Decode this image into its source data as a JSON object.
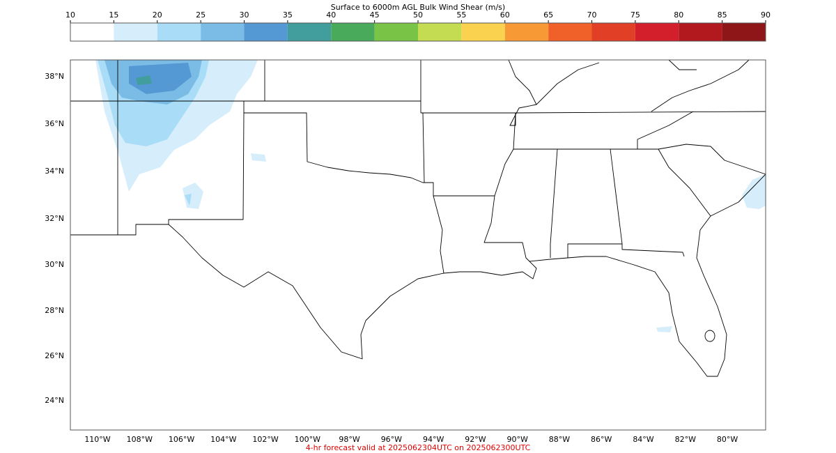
{
  "colorbar": {
    "title": "Surface to 6000m AGL Bulk Wind Shear (m/s)",
    "ticks": [
      10,
      15,
      20,
      25,
      30,
      35,
      40,
      45,
      50,
      55,
      60,
      65,
      70,
      75,
      80,
      85,
      90
    ],
    "colors": [
      "#ffffff",
      "#d6eefb",
      "#a9dcf6",
      "#7bbce6",
      "#5499d3",
      "#429e9c",
      "#4aaa5b",
      "#79c346",
      "#c4dc52",
      "#fad24f",
      "#f79a36",
      "#f0612a",
      "#e23f27",
      "#d21f2b",
      "#b2191f",
      "#8f1618"
    ]
  },
  "map": {
    "lat_labels": [
      "38°N",
      "36°N",
      "34°N",
      "32°N",
      "30°N",
      "28°N",
      "26°N",
      "24°N"
    ],
    "lon_labels": [
      "110°W",
      "108°W",
      "106°W",
      "104°W",
      "102°W",
      "100°W",
      "98°W",
      "96°W",
      "94°W",
      "92°W",
      "90°W",
      "88°W",
      "86°W",
      "84°W",
      "82°W",
      "80°W"
    ]
  },
  "footer": "4-hr forecast valid at 2025062304UTC on 2025062300UTC"
}
